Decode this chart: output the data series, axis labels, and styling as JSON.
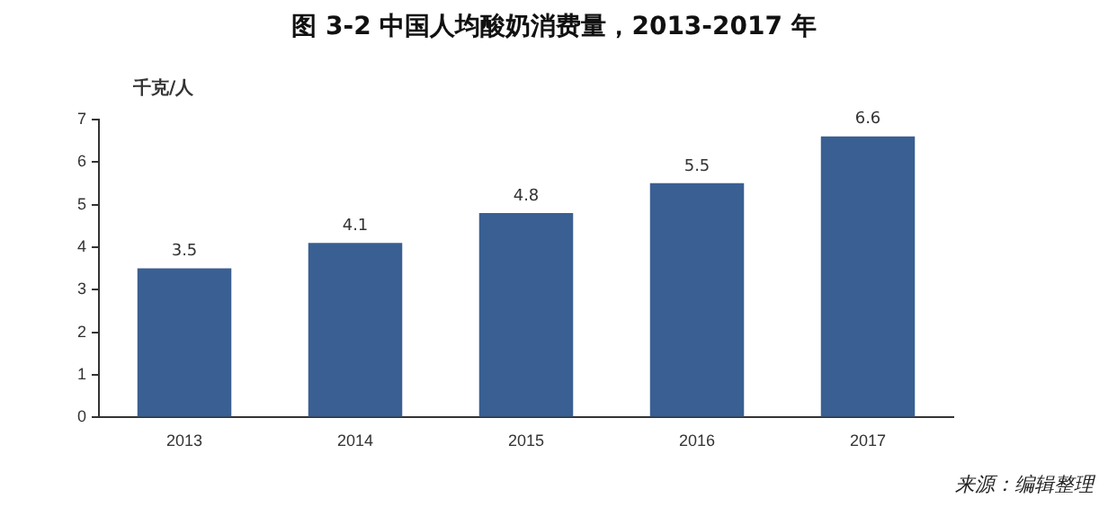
{
  "chart_data": {
    "type": "bar",
    "title": "图  3-2  中国人均酸奶消费量，2013-2017 年",
    "ylabel": "千克/人",
    "categories": [
      "2013",
      "2014",
      "2015",
      "2016",
      "2017"
    ],
    "values": [
      3.5,
      4.1,
      4.8,
      5.5,
      6.6
    ],
    "color": "#3a5f92",
    "ylim": [
      0,
      7
    ],
    "yticks": [
      0,
      1,
      2,
      3,
      4,
      5,
      6,
      7
    ],
    "grid": false,
    "data_labels": true,
    "annotations": [
      "来源：编辑整理"
    ]
  }
}
